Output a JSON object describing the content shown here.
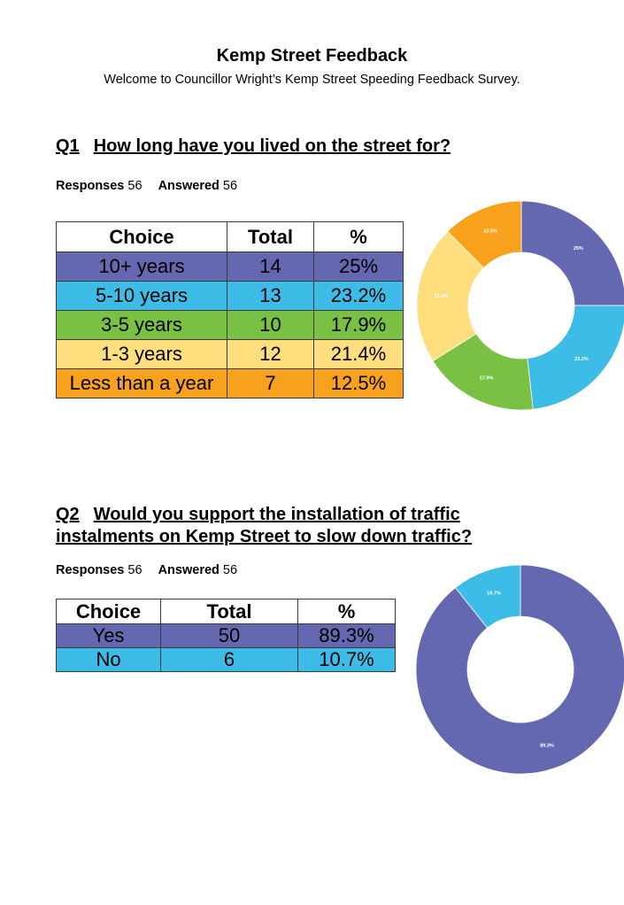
{
  "header": {
    "title": "Kemp Street Feedback",
    "subtitle": "Welcome to Councillor Wright’s Kemp Street Speeding Feedback Survey."
  },
  "q1": {
    "number": "Q1",
    "question": "How long have you lived on the street for?",
    "responses_label": "Responses",
    "responses": "56",
    "answered_label": "Answered",
    "answered": "56",
    "columns": [
      "Choice",
      "Total",
      "%"
    ],
    "rows": [
      {
        "choice": "10+ years",
        "total": "14",
        "pct": "25%",
        "color": "#6468B0"
      },
      {
        "choice": "5-10 years",
        "total": "13",
        "pct": "23.2%",
        "color": "#3CBCE6"
      },
      {
        "choice": "3-5 years",
        "total": "10",
        "pct": "17.9%",
        "color": "#7AC143"
      },
      {
        "choice": "1-3 years",
        "total": "12",
        "pct": "21.4%",
        "color": "#FEDE7D"
      },
      {
        "choice": "Less than a year",
        "total": "7",
        "pct": "12.5%",
        "color": "#F7A11C"
      }
    ]
  },
  "q2": {
    "number": "Q2",
    "question_line1": "Would you support the installation of traffic",
    "question_line2": "instalments on Kemp Street to slow down traffic?",
    "responses_label": "Responses",
    "responses": "56",
    "answered_label": "Answered",
    "answered": "56",
    "columns": [
      "Choice",
      "Total",
      "%"
    ],
    "rows": [
      {
        "choice": "Yes",
        "total": "50",
        "pct": "89.3%",
        "color": "#6468B0"
      },
      {
        "choice": "No",
        "total": "6",
        "pct": "10.7%",
        "color": "#3CBCE6"
      }
    ]
  },
  "chart_data": [
    {
      "type": "pie",
      "categories": [
        "10+ years",
        "5-10 years",
        "3-5 years",
        "1-3 years",
        "Less than a year"
      ],
      "values": [
        25,
        23.2,
        17.9,
        21.4,
        12.5
      ],
      "labels": [
        "25%",
        "23.2%",
        "17.9%",
        "21.4%",
        "12.5%"
      ],
      "colors": [
        "#6468B0",
        "#3CBCE6",
        "#7AC143",
        "#FEDE7D",
        "#F7A11C"
      ],
      "donut": true
    },
    {
      "type": "pie",
      "categories": [
        "Yes",
        "No"
      ],
      "values": [
        89.3,
        10.7
      ],
      "labels": [
        "89.3%",
        "10.7%"
      ],
      "colors": [
        "#6468B0",
        "#3CBCE6"
      ],
      "donut": true
    }
  ]
}
